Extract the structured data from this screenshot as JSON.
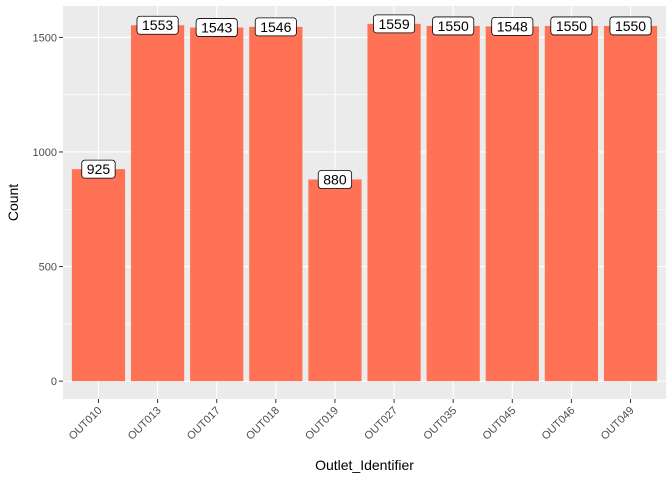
{
  "chart_data": {
    "type": "bar",
    "categories": [
      "OUT010",
      "OUT013",
      "OUT017",
      "OUT018",
      "OUT019",
      "OUT027",
      "OUT035",
      "OUT045",
      "OUT046",
      "OUT049"
    ],
    "values": [
      925,
      1553,
      1543,
      1546,
      880,
      1559,
      1550,
      1548,
      1550,
      1550
    ],
    "data_labels": [
      "925",
      "1553",
      "1543",
      "1546",
      "880",
      "1559",
      "1550",
      "1548",
      "1550",
      "1550"
    ],
    "xlabel": "Outlet_Identifier",
    "ylabel": "Count",
    "ylim": [
      -78,
      1637
    ],
    "yticks": [
      0,
      500,
      1000,
      1500
    ],
    "ytick_labels": [
      "0",
      "500",
      "1000",
      "1500"
    ],
    "grid": true,
    "legend": "none",
    "colors": {
      "bar": "#FF7256",
      "panel": "#EBEBEB",
      "grid": "#FFFFFF",
      "label_box": "#FFFFFF",
      "label_border": "#000000"
    }
  }
}
